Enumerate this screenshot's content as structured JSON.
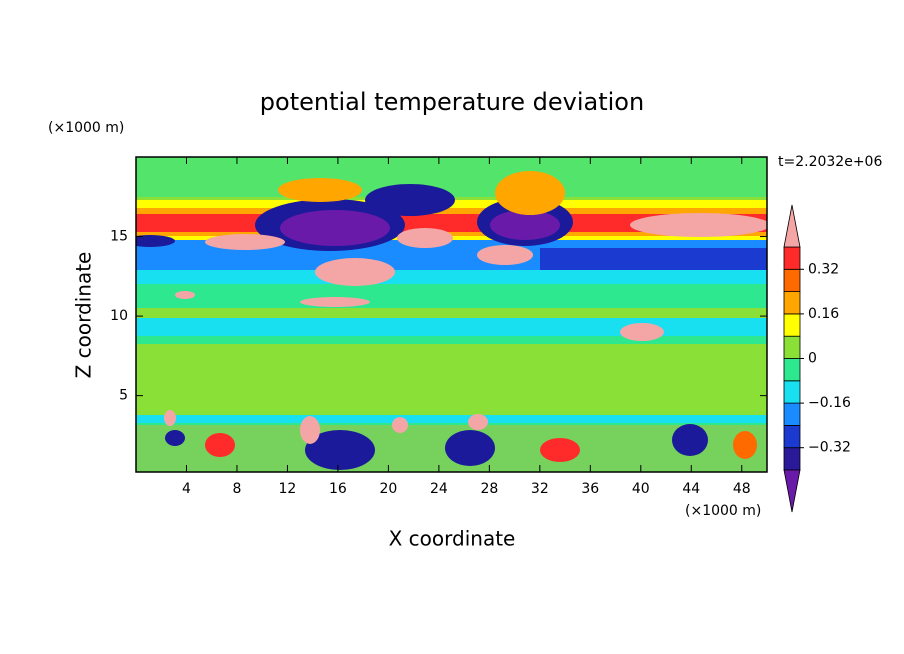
{
  "chart_data": {
    "type": "contour",
    "title": "potential temperature deviation",
    "xlabel": "X coordinate",
    "ylabel": "Z coordinate",
    "x_unit": "(×1000 m)",
    "y_unit": "(×1000 m)",
    "annotation": "t=2.2032e+06",
    "xlim": [
      0,
      50
    ],
    "xticks": [
      4,
      8,
      12,
      16,
      20,
      24,
      28,
      32,
      36,
      40,
      44,
      48
    ],
    "ylim": [
      0.2,
      20
    ],
    "yticks": [
      5,
      10,
      15
    ],
    "colorbar": {
      "levels": [
        -0.4,
        -0.32,
        -0.24,
        -0.16,
        -0.08,
        0,
        0.08,
        0.16,
        0.24,
        0.32,
        0.4
      ],
      "colors": [
        "#6a1aa8",
        "#2a1a9a",
        "#1a3ad0",
        "#1a8cff",
        "#19e0f0",
        "#2ee890",
        "#8ae036",
        "#ffff00",
        "#ffa600",
        "#ff6a00",
        "#ff2a2a",
        "#f4a6a6"
      ],
      "ticks": [
        {
          "value": 0.32,
          "label": "0.32"
        },
        {
          "value": 0.16,
          "label": "0.16"
        },
        0,
        {
          "value": -0.16,
          "label": "−0.16"
        },
        {
          "value": -0.32,
          "label": "−0.32"
        }
      ]
    }
  }
}
